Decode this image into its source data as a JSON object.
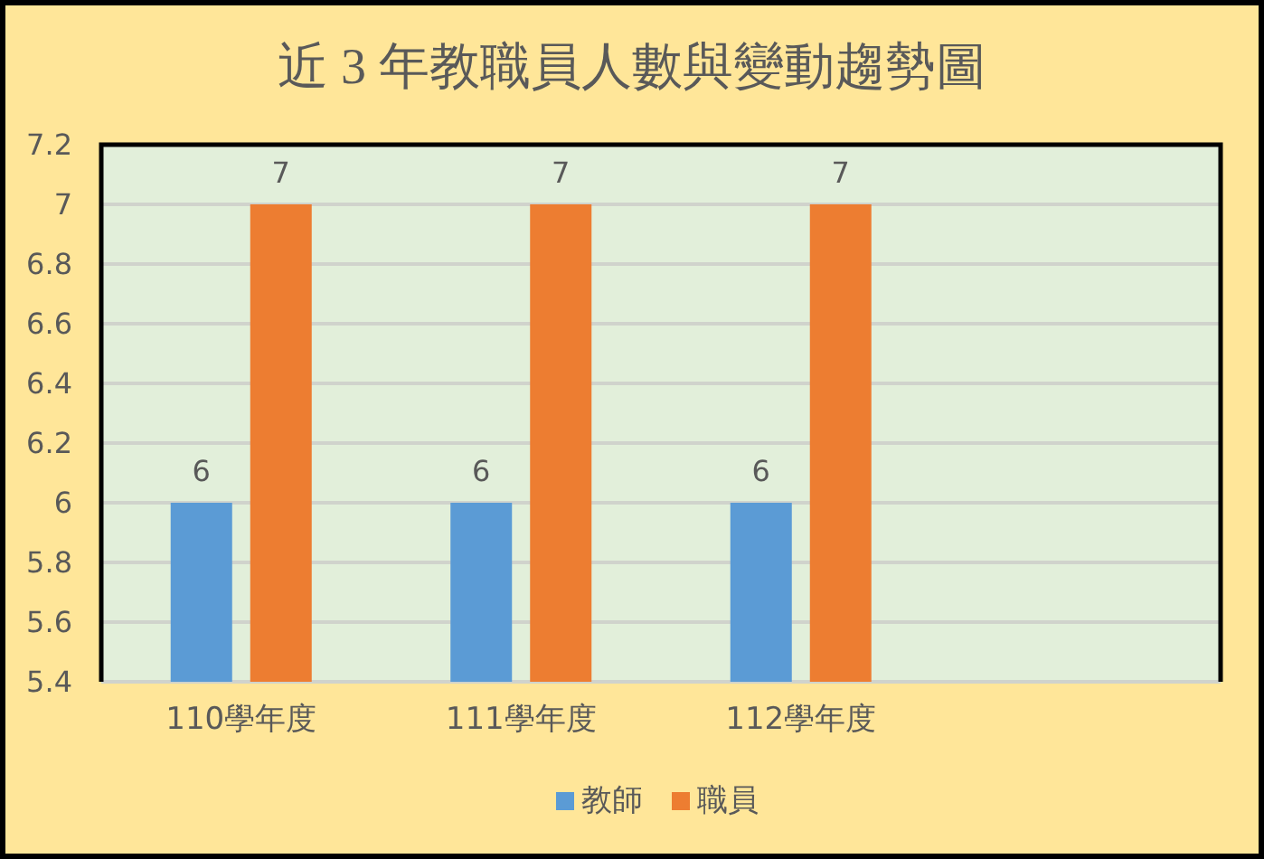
{
  "chart_data": {
    "type": "bar",
    "title": "近 3 年教職員人數與變動趨勢圖",
    "categories": [
      "110學年度",
      "111學年度",
      "112學年度",
      null
    ],
    "series": [
      {
        "name": "教師",
        "color": "#5b9bd5",
        "values": [
          6,
          6,
          6,
          null
        ]
      },
      {
        "name": "職員",
        "color": "#ed7d31",
        "values": [
          7,
          7,
          7,
          null
        ]
      }
    ],
    "ylim": [
      5.4,
      7.2
    ],
    "yticks": [
      5.4,
      5.6,
      5.8,
      6,
      6.2,
      6.4,
      6.6,
      6.8,
      7,
      7.2
    ],
    "grid": "y",
    "legend": "bottom",
    "data_labels": true
  }
}
